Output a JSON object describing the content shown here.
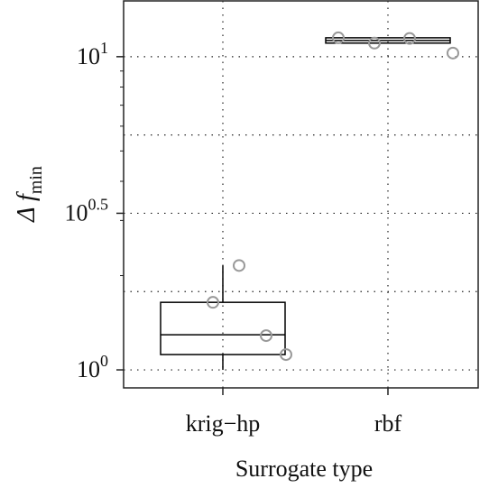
{
  "chart_data": {
    "type": "box",
    "xlabel": "Surrogate type",
    "ylabel": {
      "text": "Δ f",
      "subscript": "min"
    },
    "categories": [
      "krig−hp",
      "rbf"
    ],
    "log_y": true,
    "grid": true,
    "ylim": [
      0.876,
      15.07
    ],
    "yticks": [
      {
        "value": 1,
        "base": "10",
        "exponent": "0"
      },
      {
        "value": 3.1623,
        "base": "10",
        "exponent": "0.5"
      },
      {
        "value": 10,
        "base": "10",
        "exponent": "1"
      }
    ],
    "minor_yticks": [
      1.7783,
      5.6234
    ],
    "boxes": [
      {
        "whisker_low": 1.0,
        "q1": 1.119,
        "median": 1.294,
        "q3": 1.643,
        "whisker_high": 2.154
      },
      {
        "whisker_low": 11.05,
        "q1": 11.05,
        "median": 11.27,
        "q3": 11.49,
        "whisker_high": 11.49
      }
    ],
    "points": [
      [
        1.643,
        2.154,
        1.286,
        1.119
      ],
      [
        11.49,
        11.05,
        11.43,
        10.27
      ]
    ],
    "box_color": "#000000",
    "point_color": "#999999"
  }
}
